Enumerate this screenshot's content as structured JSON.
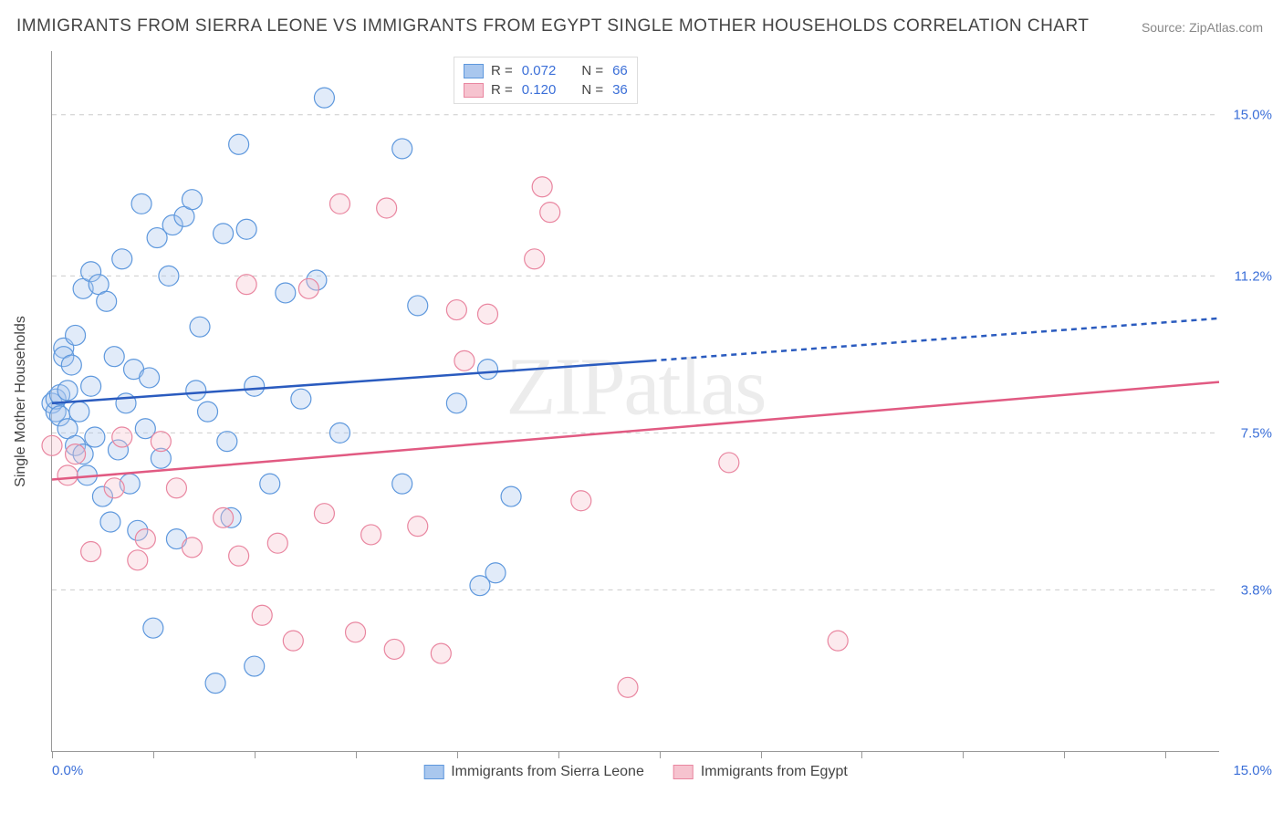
{
  "title": "IMMIGRANTS FROM SIERRA LEONE VS IMMIGRANTS FROM EGYPT SINGLE MOTHER HOUSEHOLDS CORRELATION CHART",
  "source": "Source: ZipAtlas.com",
  "watermark": "ZIPatlas",
  "chart": {
    "type": "scatter",
    "background_color": "#ffffff",
    "grid_color": "#cccccc",
    "axis_color": "#999999",
    "tick_label_color": "#3b6fd8",
    "xlim": [
      0,
      15
    ],
    "ylim": [
      0,
      16.5
    ],
    "ygrid": [
      3.8,
      7.5,
      11.2,
      15.0
    ],
    "ytick_labels": [
      "3.8%",
      "7.5%",
      "11.2%",
      "15.0%"
    ],
    "xtick_positions": [
      0,
      1.3,
      2.6,
      3.9,
      5.2,
      6.5,
      7.8,
      9.1,
      10.4,
      11.7,
      13.0,
      14.3
    ],
    "xaxis_min_label": "0.0%",
    "xaxis_max_label": "15.0%",
    "yaxis_title": "Single Mother Households",
    "marker_radius": 11,
    "marker_fill_opacity": 0.35,
    "marker_stroke_width": 1.2,
    "line_stroke_width": 2.5,
    "title_fontsize": 19,
    "label_fontsize": 15
  },
  "series": [
    {
      "name": "Immigrants from Sierra Leone",
      "color_fill": "#a9c7ee",
      "color_stroke": "#5e98dd",
      "line_color": "#2a5bbf",
      "R": "0.072",
      "N": "66",
      "trend": {
        "x1": 0,
        "y1": 8.2,
        "x2": 7.7,
        "y2": 9.2,
        "x2_dash": 15,
        "y2_dash": 10.2
      },
      "points": [
        [
          0.0,
          8.2
        ],
        [
          0.05,
          8.0
        ],
        [
          0.05,
          8.3
        ],
        [
          0.1,
          8.4
        ],
        [
          0.1,
          7.9
        ],
        [
          0.15,
          9.5
        ],
        [
          0.15,
          9.3
        ],
        [
          0.2,
          7.6
        ],
        [
          0.2,
          8.5
        ],
        [
          0.25,
          9.1
        ],
        [
          0.3,
          9.8
        ],
        [
          0.3,
          7.2
        ],
        [
          0.35,
          8.0
        ],
        [
          0.4,
          10.9
        ],
        [
          0.4,
          7.0
        ],
        [
          0.45,
          6.5
        ],
        [
          0.5,
          11.3
        ],
        [
          0.5,
          8.6
        ],
        [
          0.55,
          7.4
        ],
        [
          0.6,
          11.0
        ],
        [
          0.65,
          6.0
        ],
        [
          0.7,
          10.6
        ],
        [
          0.75,
          5.4
        ],
        [
          0.8,
          9.3
        ],
        [
          0.85,
          7.1
        ],
        [
          0.9,
          11.6
        ],
        [
          0.95,
          8.2
        ],
        [
          1.0,
          6.3
        ],
        [
          1.05,
          9.0
        ],
        [
          1.1,
          5.2
        ],
        [
          1.15,
          12.9
        ],
        [
          1.2,
          7.6
        ],
        [
          1.25,
          8.8
        ],
        [
          1.3,
          2.9
        ],
        [
          1.35,
          12.1
        ],
        [
          1.4,
          6.9
        ],
        [
          1.5,
          11.2
        ],
        [
          1.55,
          12.4
        ],
        [
          1.6,
          5.0
        ],
        [
          1.7,
          12.6
        ],
        [
          1.8,
          13.0
        ],
        [
          1.85,
          8.5
        ],
        [
          1.9,
          10.0
        ],
        [
          2.0,
          8.0
        ],
        [
          2.1,
          1.6
        ],
        [
          2.2,
          12.2
        ],
        [
          2.25,
          7.3
        ],
        [
          2.3,
          5.5
        ],
        [
          2.4,
          14.3
        ],
        [
          2.5,
          12.3
        ],
        [
          2.6,
          8.6
        ],
        [
          2.6,
          2.0
        ],
        [
          2.8,
          6.3
        ],
        [
          3.0,
          10.8
        ],
        [
          3.2,
          8.3
        ],
        [
          3.4,
          11.1
        ],
        [
          3.5,
          15.4
        ],
        [
          3.7,
          7.5
        ],
        [
          4.5,
          14.2
        ],
        [
          4.5,
          6.3
        ],
        [
          4.7,
          10.5
        ],
        [
          5.2,
          8.2
        ],
        [
          5.5,
          3.9
        ],
        [
          5.6,
          9.0
        ],
        [
          5.7,
          4.2
        ],
        [
          5.9,
          6.0
        ]
      ]
    },
    {
      "name": "Immigrants from Egypt",
      "color_fill": "#f6c3cf",
      "color_stroke": "#e986a0",
      "line_color": "#e15a82",
      "R": "0.120",
      "N": "36",
      "trend": {
        "x1": 0,
        "y1": 6.4,
        "x2": 15,
        "y2": 8.7
      },
      "points": [
        [
          0.0,
          7.2
        ],
        [
          0.2,
          6.5
        ],
        [
          0.3,
          7.0
        ],
        [
          0.5,
          4.7
        ],
        [
          0.8,
          6.2
        ],
        [
          0.9,
          7.4
        ],
        [
          1.1,
          4.5
        ],
        [
          1.2,
          5.0
        ],
        [
          1.4,
          7.3
        ],
        [
          1.6,
          6.2
        ],
        [
          1.8,
          4.8
        ],
        [
          2.2,
          5.5
        ],
        [
          2.4,
          4.6
        ],
        [
          2.5,
          11.0
        ],
        [
          2.7,
          3.2
        ],
        [
          2.9,
          4.9
        ],
        [
          3.1,
          2.6
        ],
        [
          3.3,
          10.9
        ],
        [
          3.5,
          5.6
        ],
        [
          3.7,
          12.9
        ],
        [
          3.9,
          2.8
        ],
        [
          4.1,
          5.1
        ],
        [
          4.3,
          12.8
        ],
        [
          4.4,
          2.4
        ],
        [
          4.7,
          5.3
        ],
        [
          5.0,
          2.3
        ],
        [
          5.2,
          10.4
        ],
        [
          5.3,
          9.2
        ],
        [
          5.6,
          10.3
        ],
        [
          6.2,
          11.6
        ],
        [
          6.3,
          13.3
        ],
        [
          6.4,
          12.7
        ],
        [
          6.8,
          5.9
        ],
        [
          7.4,
          1.5
        ],
        [
          8.7,
          6.8
        ],
        [
          10.1,
          2.6
        ]
      ]
    }
  ],
  "legend_top": {
    "r_label": "R =",
    "n_label": "N ="
  },
  "legend_bottom": [
    "Immigrants from Sierra Leone",
    "Immigrants from Egypt"
  ]
}
